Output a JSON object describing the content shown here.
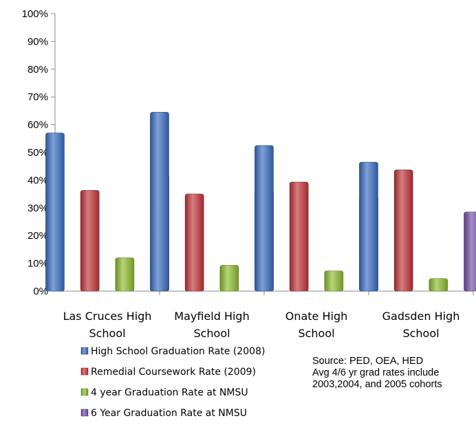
{
  "chart_data": {
    "type": "bar",
    "categories": [
      [
        "Las Cruces High",
        "School"
      ],
      [
        "Mayfield High",
        "School"
      ],
      [
        "Onate High",
        "School"
      ],
      [
        "Gadsden High",
        "School"
      ]
    ],
    "series": [
      {
        "name": "High School Graduation Rate (2008)",
        "values": [
          0.57,
          0.645,
          0.525,
          0.465
        ],
        "color": "#3a6fc4"
      },
      {
        "name": "Remedial Coursework Rate (2009)",
        "values": [
          0.363,
          0.35,
          0.393,
          0.437
        ],
        "color": "#c4363a"
      },
      {
        "name": "4 year Graduation Rate at NMSU",
        "values": [
          0.12,
          0.093,
          0.073,
          0.045
        ],
        "color": "#8fbf2f"
      },
      {
        "name": "6 Year Graduation Rate at NMSU",
        "values": [
          0.42,
          0.363,
          0.34,
          0.285
        ],
        "color": "#7650a8"
      }
    ],
    "y_ticks": [
      "0%",
      "10%",
      "20%",
      "30%",
      "40%",
      "50%",
      "60%",
      "70%",
      "80%",
      "90%",
      "100%"
    ],
    "ylim": [
      0,
      1
    ],
    "grid": false,
    "legend_position": "bottom-left",
    "annotation": [
      "Source: PED, OEA, HED",
      "Avg 4/6 yr grad rates include",
      "2003,2004, and 2005 cohorts"
    ]
  }
}
